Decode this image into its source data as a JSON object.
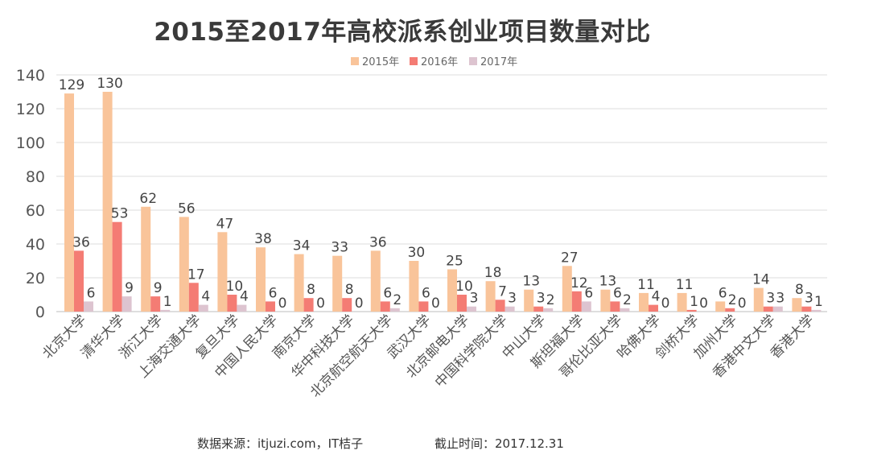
{
  "chart_data": {
    "type": "bar",
    "title": "2015至2017年高校派系创业项目数量对比",
    "ylim": [
      0,
      140
    ],
    "yticks": [
      0,
      20,
      40,
      60,
      80,
      100,
      120,
      140
    ],
    "grid": true,
    "legend_position": "top-center",
    "categories": [
      "北京大学",
      "清华大学",
      "浙江大学",
      "上海交通大学",
      "复旦大学",
      "中国人民大学",
      "南京大学",
      "华中科技大学",
      "北京航空航天大学",
      "武汉大学",
      "北京邮电大学",
      "中国科学院大学",
      "中山大学",
      "斯坦福大学",
      "哥伦比亚大学",
      "哈佛大学",
      "剑桥大学",
      "加州大学",
      "香港中文大学",
      "香港大学"
    ],
    "series": [
      {
        "name": "2015年",
        "color": "#f9c49a",
        "values": [
          129,
          130,
          62,
          56,
          47,
          38,
          34,
          33,
          36,
          30,
          25,
          18,
          13,
          27,
          13,
          11,
          11,
          6,
          14,
          8
        ]
      },
      {
        "name": "2016年",
        "color": "#f47c74",
        "values": [
          36,
          53,
          9,
          17,
          10,
          6,
          8,
          8,
          6,
          6,
          10,
          7,
          3,
          12,
          6,
          4,
          1,
          2,
          3,
          3
        ]
      },
      {
        "name": "2017年",
        "color": "#ddc4d0",
        "values": [
          6,
          9,
          1,
          4,
          4,
          0,
          0,
          0,
          2,
          0,
          3,
          3,
          2,
          6,
          2,
          0,
          0,
          0,
          3,
          1
        ]
      }
    ]
  },
  "footer": {
    "source": "数据来源：itjuzi.com，IT桔子",
    "date": "截止时间：2017.12.31"
  }
}
